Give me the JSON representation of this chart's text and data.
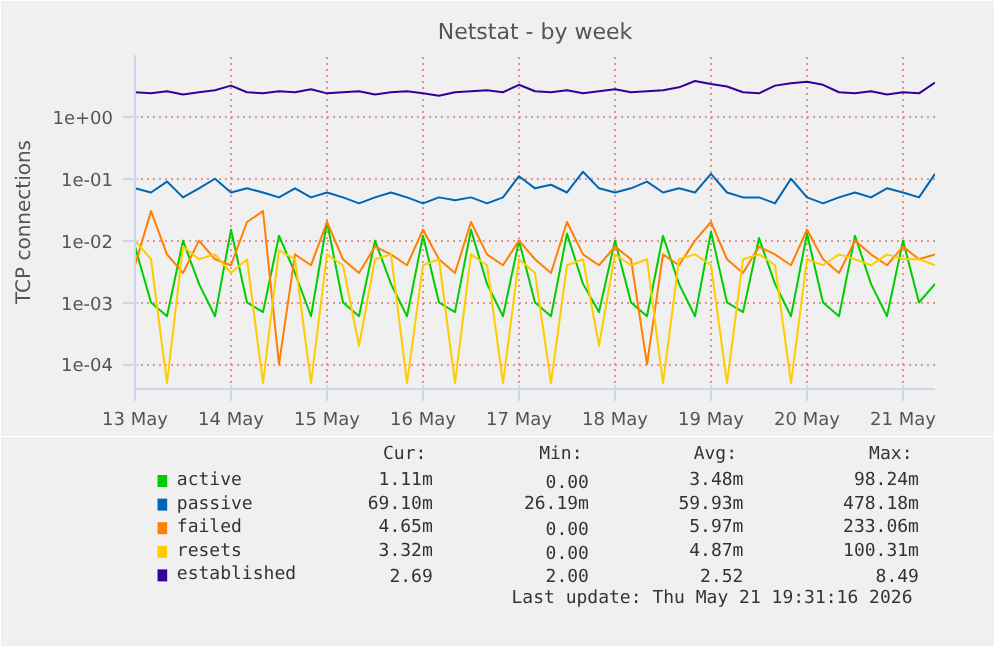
{
  "chart_data": {
    "type": "line",
    "title": "Netstat - by week",
    "ylabel": "TCP connections",
    "log": "y",
    "grid": true,
    "legend": "bottom",
    "xlim": [
      "2026-05-13T00:00",
      "2026-05-21T08:00"
    ],
    "xticks": [
      {
        "value": "2026-05-13",
        "label": "13 May"
      },
      {
        "value": "2026-05-14",
        "label": "14 May"
      },
      {
        "value": "2026-05-15",
        "label": "15 May"
      },
      {
        "value": "2026-05-16",
        "label": "16 May"
      },
      {
        "value": "2026-05-17",
        "label": "17 May"
      },
      {
        "value": "2026-05-18",
        "label": "18 May"
      },
      {
        "value": "2026-05-19",
        "label": "19 May"
      },
      {
        "value": "2026-05-20",
        "label": "20 May"
      },
      {
        "value": "2026-05-21",
        "label": "21 May"
      }
    ],
    "ylim": [
      4e-05,
      10
    ],
    "yticks": [
      {
        "value": 0.0001,
        "label": "1e-04"
      },
      {
        "value": 0.001,
        "label": "1e-03"
      },
      {
        "value": 0.01,
        "label": "1e-02"
      },
      {
        "value": 0.1,
        "label": "1e-01"
      },
      {
        "value": 1,
        "label": "1e+00"
      }
    ],
    "x": [
      "2026-05-13T00:00",
      "2026-05-13T04:00",
      "2026-05-13T08:00",
      "2026-05-13T12:00",
      "2026-05-13T16:00",
      "2026-05-13T20:00",
      "2026-05-14T00:00",
      "2026-05-14T04:00",
      "2026-05-14T08:00",
      "2026-05-14T12:00",
      "2026-05-14T16:00",
      "2026-05-14T20:00",
      "2026-05-15T00:00",
      "2026-05-15T04:00",
      "2026-05-15T08:00",
      "2026-05-15T12:00",
      "2026-05-15T16:00",
      "2026-05-15T20:00",
      "2026-05-16T00:00",
      "2026-05-16T04:00",
      "2026-05-16T08:00",
      "2026-05-16T12:00",
      "2026-05-16T16:00",
      "2026-05-16T20:00",
      "2026-05-17T00:00",
      "2026-05-17T04:00",
      "2026-05-17T08:00",
      "2026-05-17T12:00",
      "2026-05-17T16:00",
      "2026-05-17T20:00",
      "2026-05-18T00:00",
      "2026-05-18T04:00",
      "2026-05-18T08:00",
      "2026-05-18T12:00",
      "2026-05-18T16:00",
      "2026-05-18T20:00",
      "2026-05-19T00:00",
      "2026-05-19T04:00",
      "2026-05-19T08:00",
      "2026-05-19T12:00",
      "2026-05-19T16:00",
      "2026-05-19T20:00",
      "2026-05-20T00:00",
      "2026-05-20T04:00",
      "2026-05-20T08:00",
      "2026-05-20T12:00",
      "2026-05-20T16:00",
      "2026-05-20T20:00",
      "2026-05-21T00:00",
      "2026-05-21T04:00",
      "2026-05-21T08:00"
    ],
    "series": [
      {
        "name": "active",
        "color": "#00cc00",
        "values": [
          0.008,
          0.001,
          0.0006,
          0.01,
          0.002,
          0.0006,
          0.015,
          0.001,
          0.0007,
          0.012,
          0.003,
          0.0006,
          0.02,
          0.001,
          0.0006,
          0.01,
          0.002,
          0.0006,
          0.012,
          0.001,
          0.0007,
          0.015,
          0.002,
          0.0006,
          0.01,
          0.001,
          0.0006,
          0.013,
          0.002,
          0.0007,
          0.01,
          0.001,
          0.0006,
          0.012,
          0.002,
          0.0006,
          0.014,
          0.001,
          0.0007,
          0.011,
          0.002,
          0.0006,
          0.013,
          0.001,
          0.0006,
          0.012,
          0.002,
          0.0006,
          0.01,
          0.001,
          0.002
        ]
      },
      {
        "name": "passive",
        "color": "#0066b3",
        "values": [
          0.07,
          0.06,
          0.09,
          0.05,
          0.07,
          0.1,
          0.06,
          0.07,
          0.06,
          0.05,
          0.07,
          0.05,
          0.06,
          0.05,
          0.04,
          0.05,
          0.06,
          0.05,
          0.04,
          0.05,
          0.045,
          0.05,
          0.04,
          0.05,
          0.11,
          0.07,
          0.08,
          0.06,
          0.13,
          0.07,
          0.06,
          0.07,
          0.09,
          0.06,
          0.07,
          0.06,
          0.12,
          0.06,
          0.05,
          0.05,
          0.04,
          0.1,
          0.05,
          0.04,
          0.05,
          0.06,
          0.05,
          0.07,
          0.06,
          0.05,
          0.12
        ]
      },
      {
        "name": "failed",
        "color": "#ff8000",
        "values": [
          0.004,
          0.03,
          0.006,
          0.003,
          0.01,
          0.005,
          0.004,
          0.02,
          0.03,
          0.0001,
          0.006,
          0.004,
          0.02,
          0.005,
          0.003,
          0.008,
          0.006,
          0.004,
          0.015,
          0.005,
          0.003,
          0.02,
          0.006,
          0.004,
          0.01,
          0.005,
          0.003,
          0.02,
          0.006,
          0.004,
          0.008,
          0.005,
          0.0001,
          0.006,
          0.004,
          0.01,
          0.02,
          0.005,
          0.003,
          0.008,
          0.006,
          0.004,
          0.015,
          0.005,
          0.003,
          0.01,
          0.006,
          0.004,
          0.008,
          0.005,
          0.006
        ]
      },
      {
        "name": "resets",
        "color": "#ffcc00",
        "values": [
          0.01,
          0.005,
          5e-05,
          0.008,
          0.005,
          0.006,
          0.003,
          0.005,
          5e-05,
          0.007,
          0.005,
          5e-05,
          0.006,
          0.004,
          0.0002,
          0.005,
          0.006,
          5e-05,
          0.004,
          0.005,
          5e-05,
          0.006,
          0.004,
          5e-05,
          0.005,
          0.003,
          5e-05,
          0.004,
          0.005,
          0.0002,
          0.006,
          0.004,
          0.005,
          5e-05,
          0.005,
          0.006,
          0.004,
          5e-05,
          0.005,
          0.006,
          0.004,
          5e-05,
          0.005,
          0.004,
          0.006,
          0.005,
          0.004,
          0.006,
          0.005,
          0.005,
          0.004
        ]
      },
      {
        "name": "established",
        "color": "#330099",
        "values": [
          2.5,
          2.4,
          2.6,
          2.3,
          2.5,
          2.7,
          3.2,
          2.5,
          2.4,
          2.6,
          2.5,
          2.8,
          2.4,
          2.5,
          2.6,
          2.3,
          2.5,
          2.6,
          2.4,
          2.2,
          2.5,
          2.6,
          2.7,
          2.5,
          3.3,
          2.6,
          2.5,
          2.7,
          2.4,
          2.6,
          2.8,
          2.5,
          2.6,
          2.7,
          3.0,
          3.8,
          3.4,
          3.1,
          2.5,
          2.4,
          3.2,
          3.5,
          3.7,
          3.3,
          2.5,
          2.4,
          2.6,
          2.3,
          2.5,
          2.4,
          3.6
        ]
      }
    ],
    "annotations": [
      "Cur:",
      "Min:",
      "Avg:",
      "Max:",
      "1.11m",
      "0.00",
      "3.48m",
      "98.24m",
      "69.10m",
      "26.19m",
      "59.93m",
      "478.18m",
      "4.65m",
      "0.00",
      "5.97m",
      "233.06m",
      "3.32m",
      "0.00",
      "4.87m",
      "100.31m",
      "2.69",
      "2.00",
      "2.52",
      "8.49",
      "Last update: Thu May 21 19:31:16 2026"
    ]
  }
}
